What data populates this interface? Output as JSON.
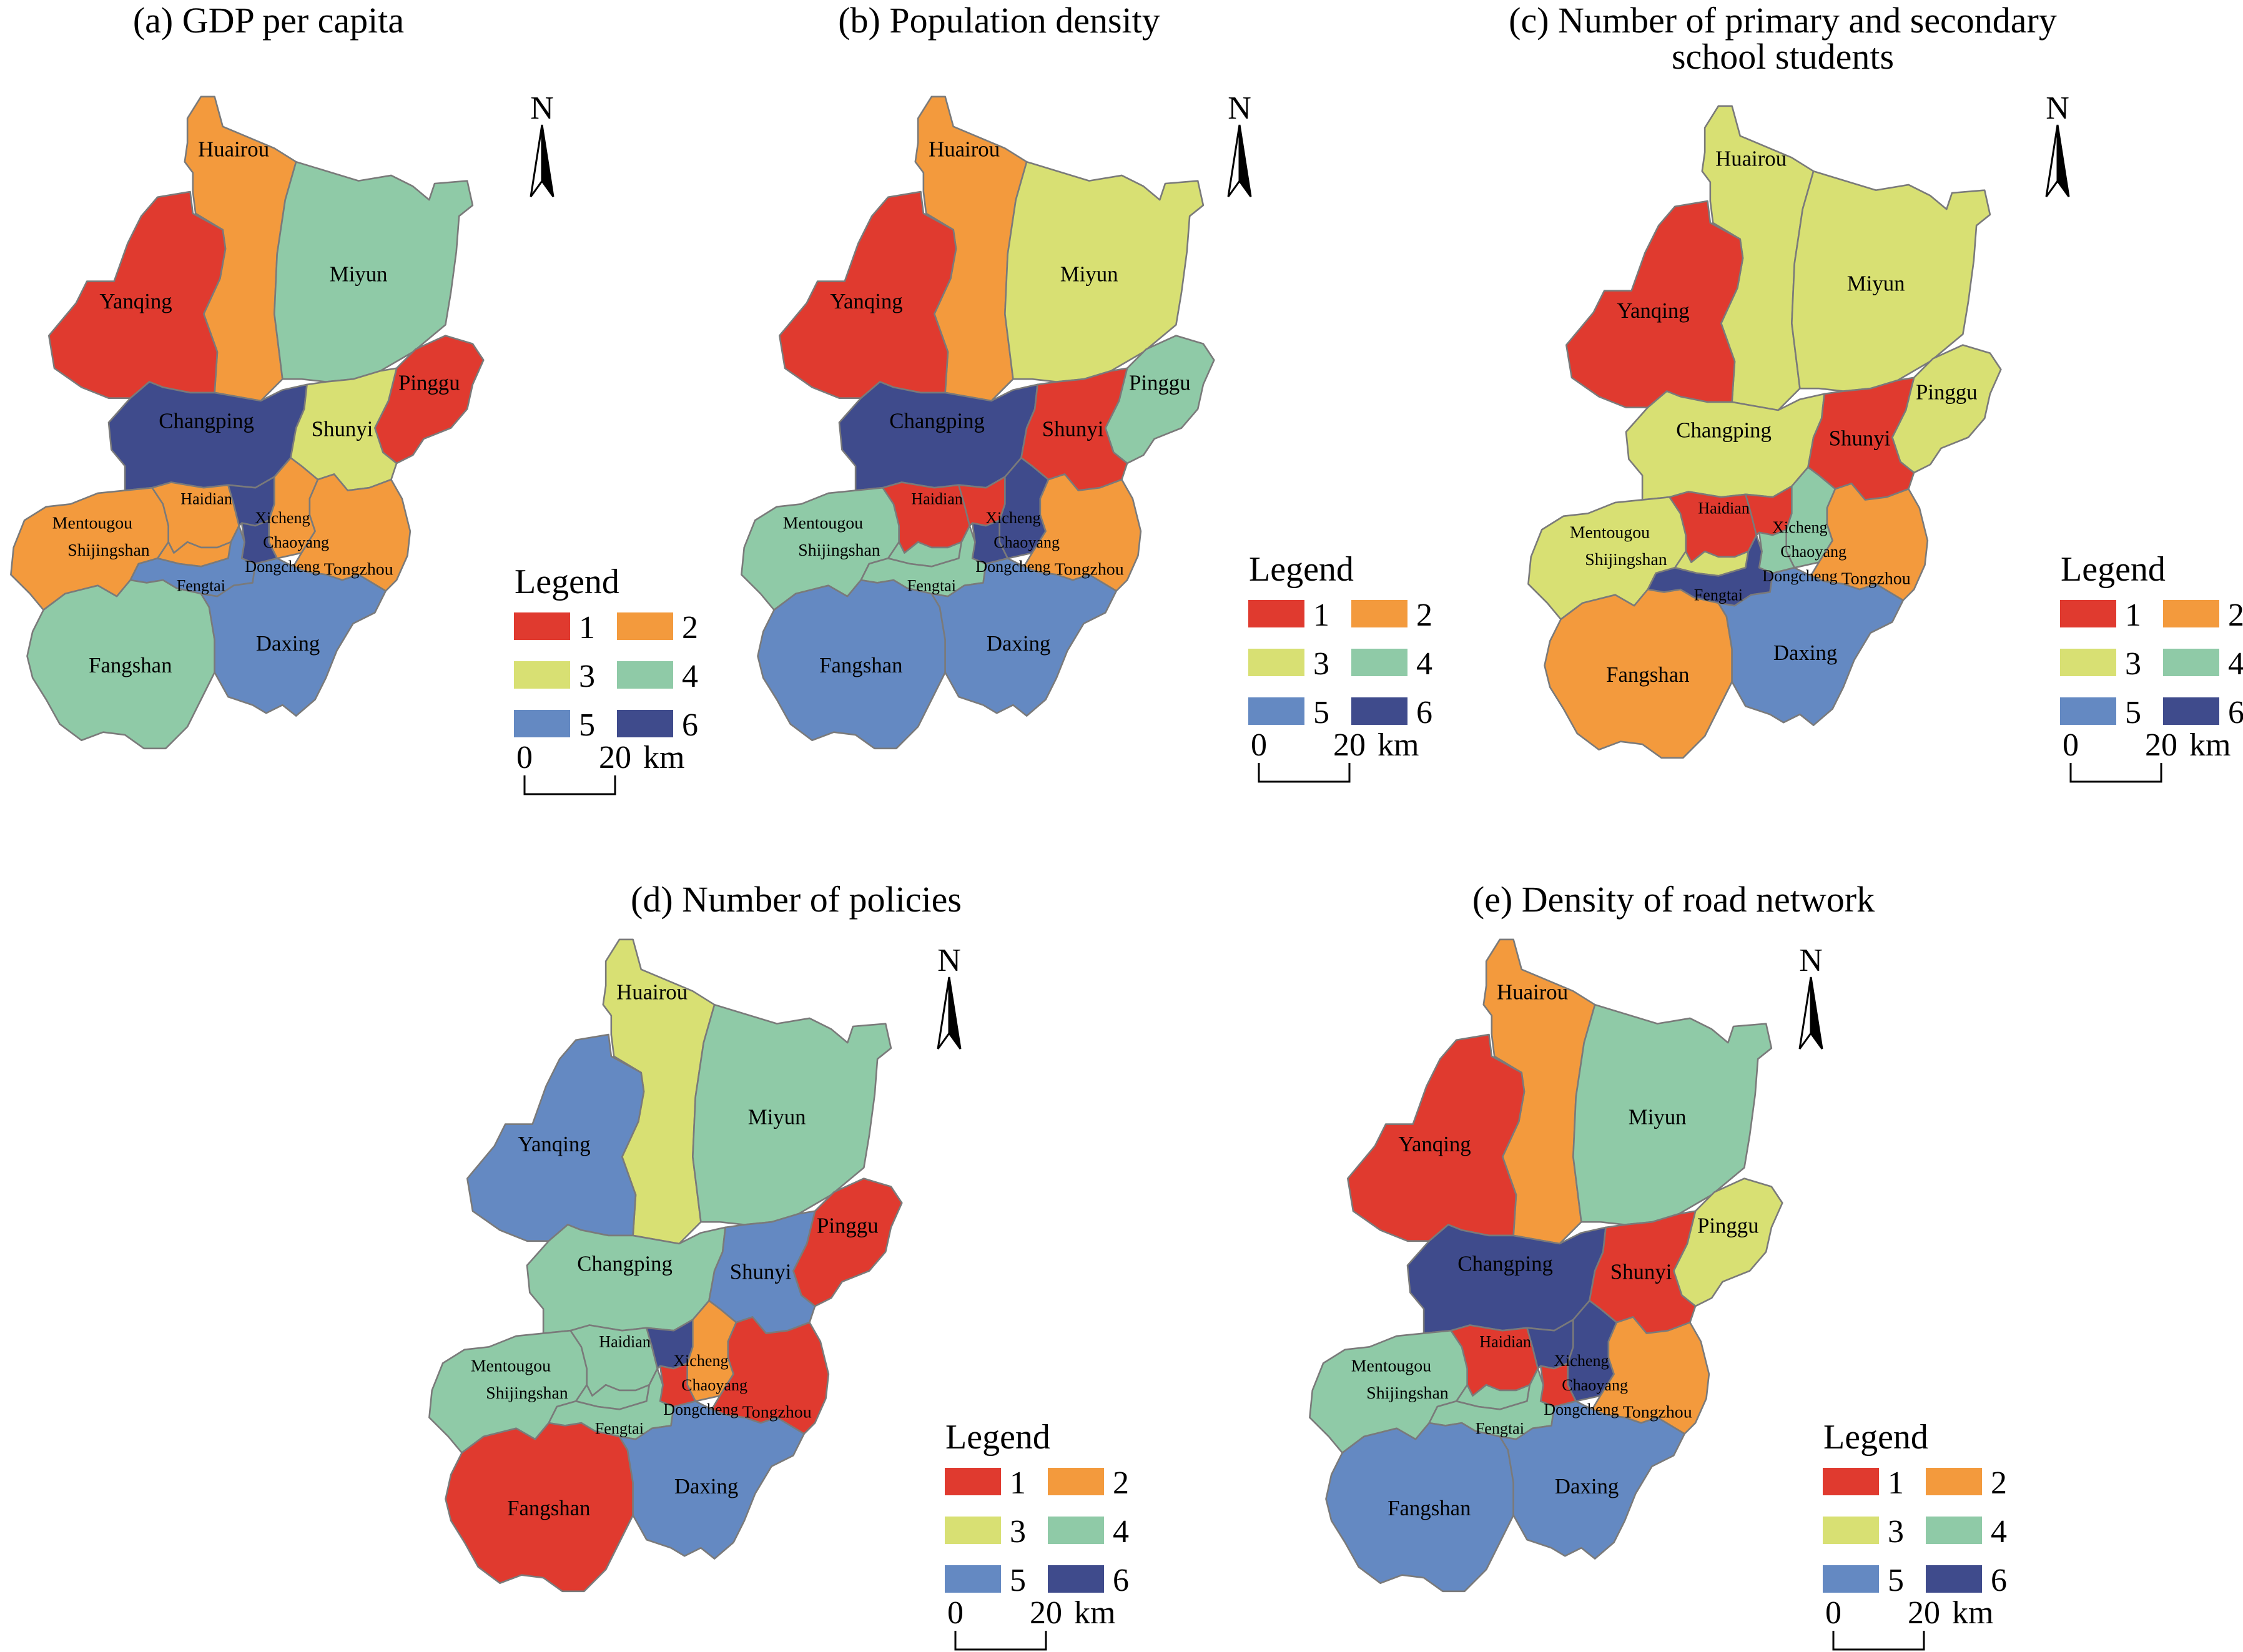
{
  "colors": {
    "1": "#e03a2f",
    "2": "#f39a3d",
    "3": "#d8e073",
    "4": "#8fcaa7",
    "5": "#6489c2",
    "6": "#3f4b8c",
    "border": "#7a7a7a",
    "text": "#000000"
  },
  "legend": {
    "title": "Legend",
    "classes": [
      "1",
      "2",
      "3",
      "4",
      "5",
      "6"
    ],
    "scale_zero": "0",
    "scale_twenty": "20",
    "scale_unit": "km"
  },
  "north_label": "N",
  "districts": [
    "Huairou",
    "Miyun",
    "Yanqing",
    "Pinggu",
    "Changping",
    "Shunyi",
    "Mentougou",
    "Haidian",
    "Xicheng",
    "Chaoyang",
    "Dongcheng",
    "Shijingshan",
    "Fengtai",
    "Tongzhou",
    "Fangshan",
    "Daxing"
  ],
  "maps": [
    {
      "title_lines": [
        "(a) GDP per capita"
      ],
      "classes": {
        "Huairou": 2,
        "Miyun": 4,
        "Yanqing": 1,
        "Pinggu": 1,
        "Changping": 6,
        "Shunyi": 3,
        "Mentougou": 2,
        "Haidian": 2,
        "Xicheng": 6,
        "Chaoyang": 2,
        "Dongcheng": 6,
        "Shijingshan": 2,
        "Fengtai": 5,
        "Tongzhou": 2,
        "Fangshan": 4,
        "Daxing": 5
      }
    },
    {
      "title_lines": [
        "(b) Population density"
      ],
      "classes": {
        "Huairou": 2,
        "Miyun": 3,
        "Yanqing": 1,
        "Pinggu": 4,
        "Changping": 6,
        "Shunyi": 1,
        "Mentougou": 4,
        "Haidian": 1,
        "Xicheng": 1,
        "Chaoyang": 6,
        "Dongcheng": 6,
        "Shijingshan": 4,
        "Fengtai": 4,
        "Tongzhou": 2,
        "Fangshan": 5,
        "Daxing": 5
      }
    },
    {
      "title_lines": [
        "(c) Number of primary and secondary",
        "school students"
      ],
      "classes": {
        "Huairou": 3,
        "Miyun": 3,
        "Yanqing": 1,
        "Pinggu": 3,
        "Changping": 3,
        "Shunyi": 1,
        "Mentougou": 3,
        "Haidian": 1,
        "Xicheng": 1,
        "Chaoyang": 4,
        "Dongcheng": 4,
        "Shijingshan": 3,
        "Fengtai": 6,
        "Tongzhou": 2,
        "Fangshan": 2,
        "Daxing": 5
      }
    },
    {
      "title_lines": [
        "(d) Number of policies"
      ],
      "classes": {
        "Huairou": 3,
        "Miyun": 4,
        "Yanqing": 5,
        "Pinggu": 1,
        "Changping": 4,
        "Shunyi": 5,
        "Mentougou": 4,
        "Haidian": 4,
        "Xicheng": 6,
        "Chaoyang": 2,
        "Dongcheng": 1,
        "Shijingshan": 4,
        "Fengtai": 4,
        "Tongzhou": 1,
        "Fangshan": 1,
        "Daxing": 5
      }
    },
    {
      "title_lines": [
        "(e) Density of road network"
      ],
      "classes": {
        "Huairou": 2,
        "Miyun": 4,
        "Yanqing": 1,
        "Pinggu": 3,
        "Changping": 6,
        "Shunyi": 1,
        "Mentougou": 4,
        "Haidian": 1,
        "Xicheng": 6,
        "Chaoyang": 6,
        "Dongcheng": 1,
        "Shijingshan": 4,
        "Fengtai": 4,
        "Tongzhou": 2,
        "Fangshan": 5,
        "Daxing": 5
      }
    }
  ]
}
